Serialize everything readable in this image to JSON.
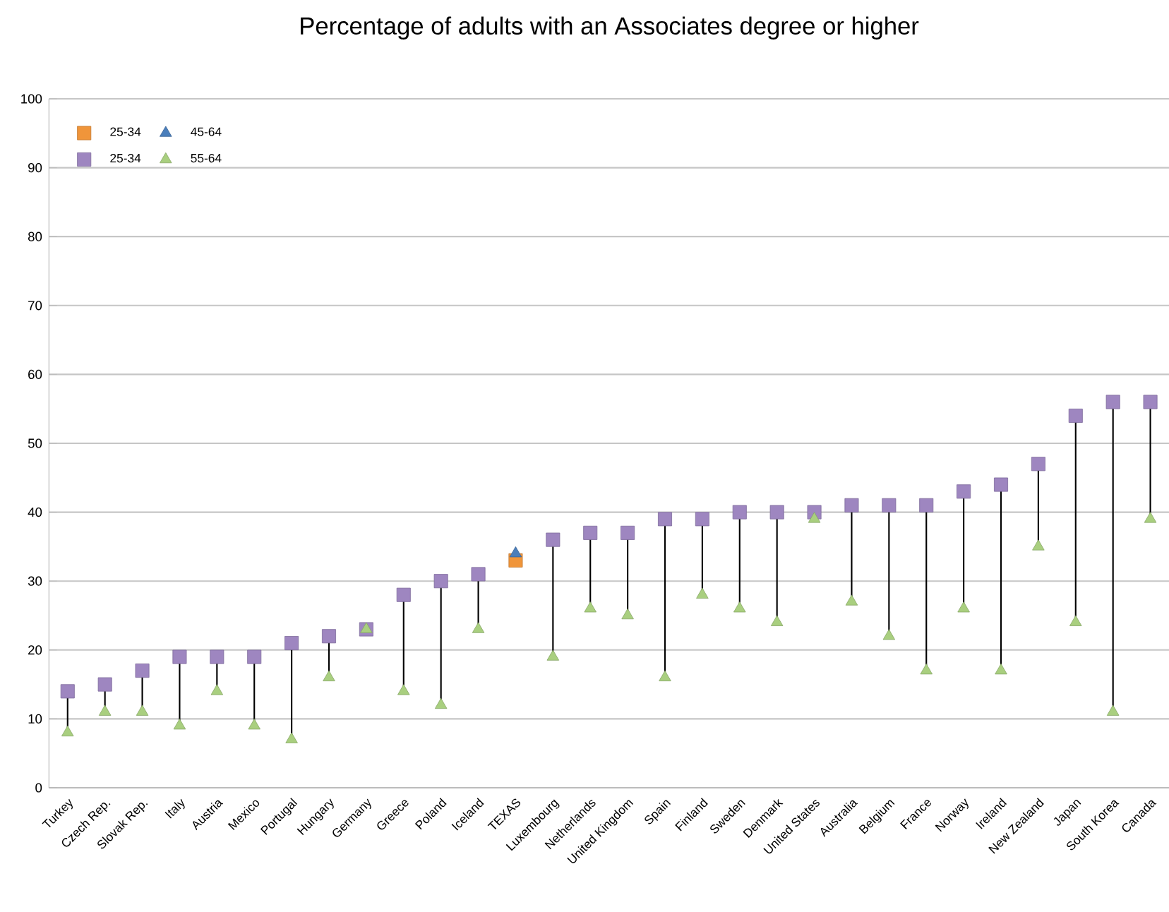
{
  "chart_data": {
    "type": "scatter",
    "title": "Percentage of adults with an Associates degree or higher",
    "categories": [
      "Turkey",
      "Czech Rep.",
      "Slovak Rep.",
      "Italy",
      "Austria",
      "Mexico",
      "Portugal",
      "Hungary",
      "Germany",
      "Greece",
      "Poland",
      "Iceland",
      "TEXAS",
      "Luxembourg",
      "Netherlands",
      "United Kingdom",
      "Spain",
      "Finland",
      "Sweden",
      "Denmark",
      "United States",
      "Australia",
      "Belgium",
      "France",
      "Norway",
      "Ireland",
      "New Zealand",
      "Japan",
      "South Korea",
      "Canada"
    ],
    "series": [
      {
        "name": "25-34",
        "color": "#f0953a",
        "marker": "square",
        "values": [
          null,
          null,
          null,
          null,
          null,
          null,
          null,
          null,
          null,
          null,
          null,
          null,
          33,
          null,
          null,
          null,
          null,
          null,
          null,
          null,
          null,
          null,
          null,
          null,
          null,
          null,
          null,
          null,
          null,
          null
        ]
      },
      {
        "name": "45-64",
        "color": "#4a7ebb",
        "marker": "triangle",
        "values": [
          null,
          null,
          null,
          null,
          null,
          null,
          null,
          null,
          null,
          null,
          null,
          null,
          34,
          null,
          null,
          null,
          null,
          null,
          null,
          null,
          null,
          null,
          null,
          null,
          null,
          null,
          null,
          null,
          null,
          null
        ]
      },
      {
        "name": "25-34",
        "color": "#9e86c0",
        "marker": "square",
        "values": [
          14,
          15,
          17,
          19,
          19,
          19,
          21,
          22,
          23,
          28,
          30,
          31,
          null,
          36,
          37,
          37,
          39,
          39,
          40,
          40,
          40,
          41,
          41,
          41,
          43,
          44,
          47,
          54,
          56,
          56
        ]
      },
      {
        "name": "55-64",
        "color": "#a9cf7f",
        "marker": "triangle",
        "values": [
          8,
          11,
          11,
          9,
          14,
          9,
          7,
          16,
          23,
          14,
          12,
          23,
          null,
          19,
          26,
          25,
          16,
          28,
          26,
          24,
          39,
          27,
          22,
          17,
          26,
          17,
          35,
          24,
          11,
          39
        ]
      }
    ],
    "ylim": [
      0,
      100
    ],
    "yticks": [
      0,
      10,
      20,
      30,
      40,
      50,
      60,
      70,
      80,
      90,
      100
    ],
    "grid": "y",
    "legend": "top left"
  }
}
